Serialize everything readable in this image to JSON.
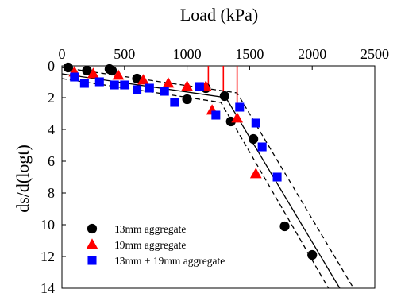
{
  "chart_data": {
    "type": "scatter",
    "xlabel": "Load (kPa)",
    "ylabel": "ds/d(logt)",
    "xlim": [
      0,
      2500
    ],
    "ylim": [
      0,
      14
    ],
    "y_inverted": true,
    "x_axis_position": "top",
    "x_ticks": [
      0,
      500,
      1000,
      1500,
      2000,
      2500
    ],
    "y_ticks": [
      0,
      2,
      4,
      6,
      8,
      10,
      12,
      14
    ],
    "x_tick_labels": [
      "0",
      "500",
      "1000",
      "1500",
      "2000",
      "2500"
    ],
    "y_tick_labels": [
      "0",
      "2",
      "4",
      "6",
      "8",
      "10",
      "12",
      "14"
    ],
    "grid": false,
    "legend_position": "bottom-left",
    "series": [
      {
        "name": "13mm aggregate",
        "marker": "circle",
        "color": "#000000",
        "points": [
          [
            50,
            0.1
          ],
          [
            200,
            0.3
          ],
          [
            380,
            0.2
          ],
          [
            400,
            0.3
          ],
          [
            600,
            0.8
          ],
          [
            1000,
            2.1
          ],
          [
            1150,
            1.4
          ],
          [
            1300,
            1.9
          ],
          [
            1350,
            3.5
          ],
          [
            1530,
            4.6
          ],
          [
            1780,
            10.1
          ],
          [
            2000,
            11.9
          ]
        ]
      },
      {
        "name": "19mm aggregate",
        "marker": "triangle",
        "color": "#ff0000",
        "points": [
          [
            100,
            0.4
          ],
          [
            250,
            0.5
          ],
          [
            450,
            0.6
          ],
          [
            650,
            0.9
          ],
          [
            850,
            1.1
          ],
          [
            1000,
            1.3
          ],
          [
            1150,
            1.3
          ],
          [
            1200,
            2.8
          ],
          [
            1400,
            3.3
          ],
          [
            1550,
            6.8
          ]
        ]
      },
      {
        "name": "13mm + 19mm aggregate",
        "marker": "square",
        "color": "#0000ff",
        "points": [
          [
            100,
            0.7
          ],
          [
            180,
            1.1
          ],
          [
            300,
            1.0
          ],
          [
            420,
            1.2
          ],
          [
            500,
            1.2
          ],
          [
            600,
            1.5
          ],
          [
            700,
            1.4
          ],
          [
            820,
            1.6
          ],
          [
            900,
            2.3
          ],
          [
            1100,
            1.3
          ],
          [
            1230,
            3.1
          ],
          [
            1420,
            2.6
          ],
          [
            1550,
            3.6
          ],
          [
            1600,
            5.1
          ],
          [
            1720,
            7.0
          ]
        ]
      }
    ],
    "fit_lines": [
      {
        "style": "solid",
        "color": "#000000",
        "points": [
          [
            0,
            0.5
          ],
          [
            1310,
            2.0
          ],
          [
            2220,
            14
          ]
        ]
      },
      {
        "style": "dashed",
        "color": "#000000",
        "points": [
          [
            0,
            0.1
          ],
          [
            1400,
            1.7
          ],
          [
            2330,
            14
          ]
        ]
      },
      {
        "style": "dashed",
        "color": "#000000",
        "points": [
          [
            0,
            0.8
          ],
          [
            1270,
            2.3
          ],
          [
            2130,
            14
          ]
        ]
      }
    ],
    "markers_vertical": [
      {
        "x": 1170,
        "color": "#ff0000",
        "y_from": 0,
        "y_to": 1.5
      },
      {
        "x": 1290,
        "color": "#ff0000",
        "y_from": 0,
        "y_to": 2.0
      },
      {
        "x": 1400,
        "color": "#ff0000",
        "y_from": 0,
        "y_to": 2.5
      }
    ]
  }
}
